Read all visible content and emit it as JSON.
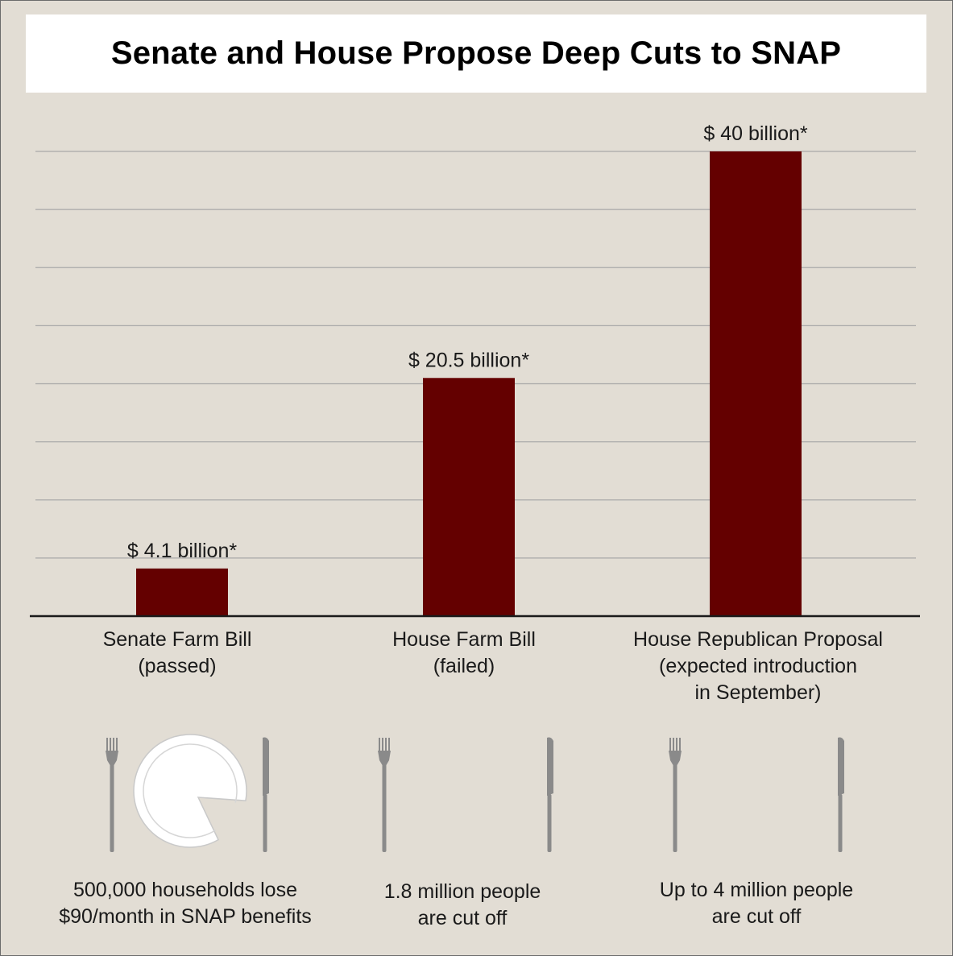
{
  "chart_data": {
    "type": "bar",
    "title": "Senate and House Propose Deep Cuts to SNAP",
    "categories": [
      [
        "Senate Farm Bill",
        "(passed)"
      ],
      [
        "House Farm Bill",
        "(failed)"
      ],
      [
        "House Republican Proposal",
        "(expected introduction",
        "in September)"
      ]
    ],
    "values": [
      4.1,
      20.5,
      40
    ],
    "value_labels": [
      "$ 4.1 billion*",
      "$ 20.5 billion*",
      "$ 40 billion*"
    ],
    "ylim": [
      0,
      40
    ],
    "grid": true,
    "bar_color": "#640000"
  },
  "captions": [
    [
      "500,000 households lose",
      "$90/month in SNAP benefits"
    ],
    [
      "1.8 million people",
      "are cut off"
    ],
    [
      "Up to 4 million people",
      "are cut off"
    ]
  ],
  "icons": [
    [
      "fork-icon",
      "plate-with-slice-missing-icon",
      "knife-icon"
    ],
    [
      "fork-icon",
      "knife-icon"
    ],
    [
      "fork-icon",
      "knife-icon"
    ]
  ],
  "colors": {
    "background": "#e2ddd4",
    "bar": "#640000",
    "gridline": "#a8a8a8",
    "cutlery": "#8a8a8a"
  }
}
